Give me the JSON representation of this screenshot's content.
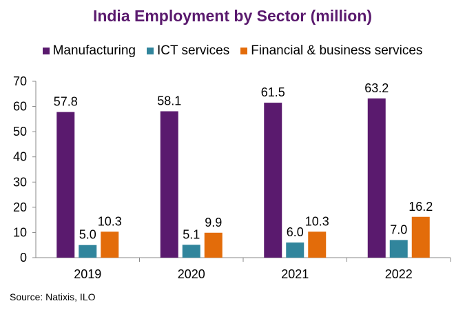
{
  "chart_data": {
    "type": "bar",
    "title": "India Employment  by Sector (million)",
    "categories": [
      "2019",
      "2020",
      "2021",
      "2022"
    ],
    "series": [
      {
        "name": "Manufacturing",
        "color": "#5a1a6e",
        "values": [
          57.8,
          58.1,
          61.5,
          63.2
        ],
        "labels": [
          "57.8",
          "58.1",
          "61.5",
          "63.2"
        ]
      },
      {
        "name": "ICT services",
        "color": "#31859c",
        "values": [
          5.0,
          5.1,
          6.0,
          7.0
        ],
        "labels": [
          "5.0",
          "5.1",
          "6.0",
          "7.0"
        ]
      },
      {
        "name": "Financial & business services",
        "color": "#e36c0a",
        "values": [
          10.3,
          9.9,
          10.3,
          16.2
        ],
        "labels": [
          "10.3",
          "9.9",
          "10.3",
          "16.2"
        ]
      }
    ],
    "ylim": [
      0,
      70
    ],
    "yticks": [
      "0",
      "10",
      "20",
      "30",
      "40",
      "50",
      "60",
      "70"
    ],
    "xlabel": "",
    "ylabel": "",
    "grid": false,
    "legend_position": "top",
    "title_color": "#5a1a6e"
  },
  "source": "Source: Natixis,  ILO"
}
